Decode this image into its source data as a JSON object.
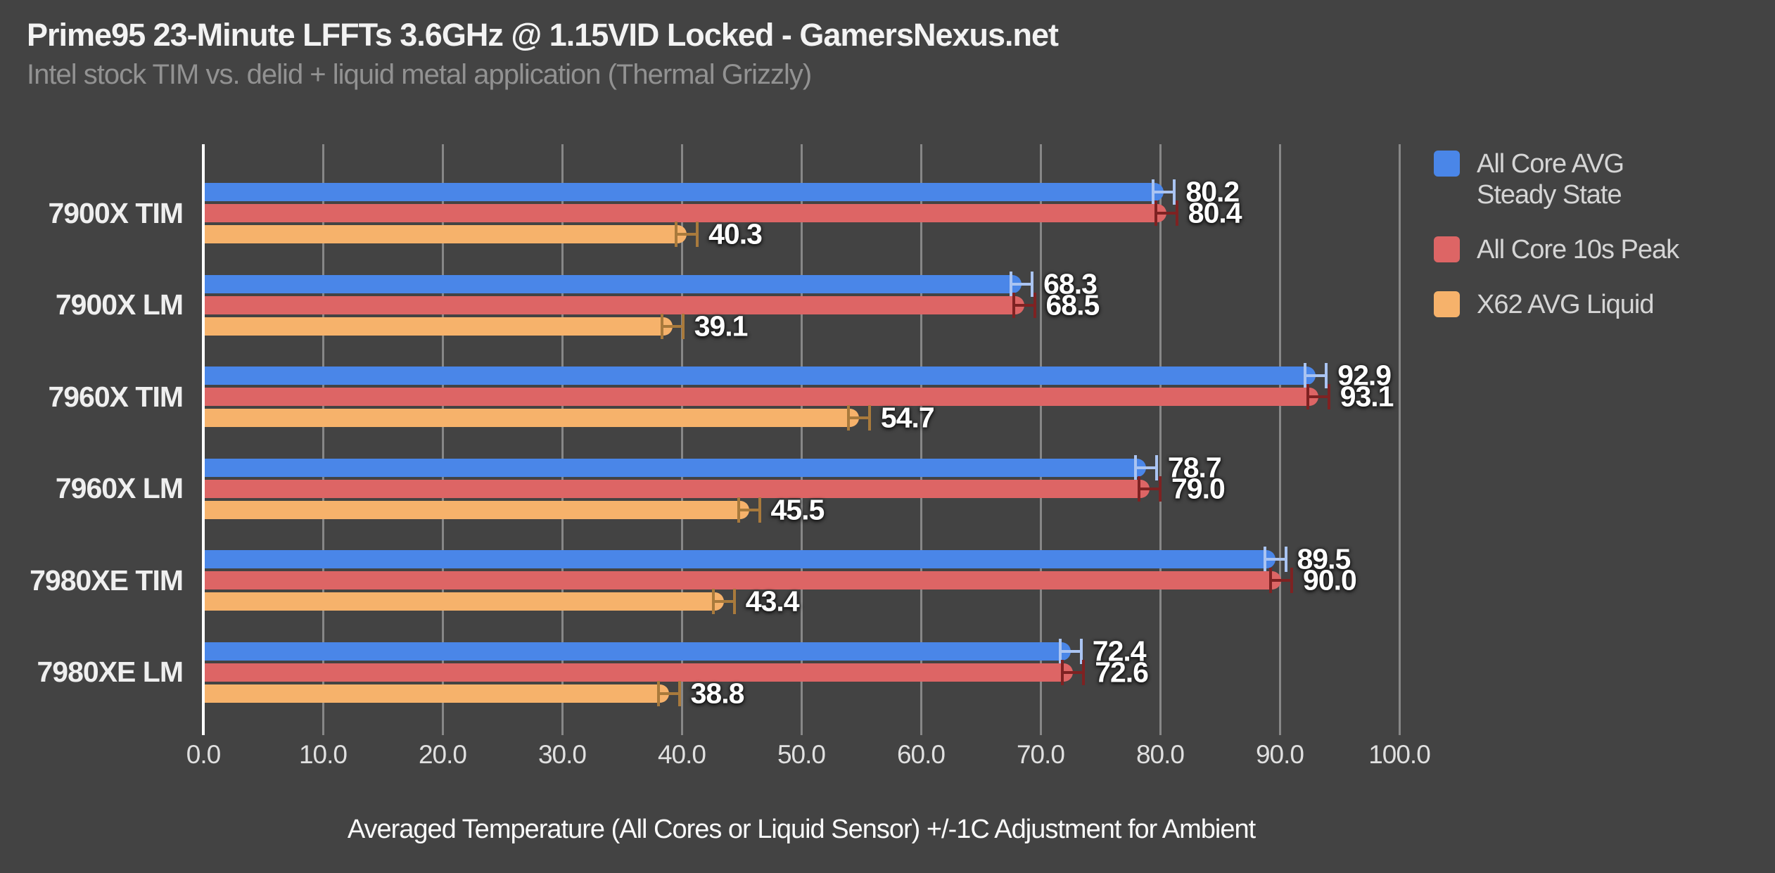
{
  "chart_data": {
    "type": "bar",
    "orientation": "horizontal",
    "title": "Prime95 23-Minute LFFTs 3.6GHz @ 1.15VID Locked - GamersNexus.net",
    "subtitle": "Intel stock TIM vs. delid + liquid metal application (Thermal Grizzly)",
    "categories": [
      "7900X TIM",
      "7900X LM",
      "7960X TIM",
      "7960X LM",
      "7980XE TIM",
      "7980XE LM"
    ],
    "series": [
      {
        "name": "All Core AVG\nSteady State",
        "color": "#4a86e8",
        "error_color": "#aac4f2",
        "values": [
          80.2,
          68.3,
          92.9,
          78.7,
          89.5,
          72.4
        ]
      },
      {
        "name": "All Core 10s Peak",
        "color": "#dd6565",
        "error_color": "#7e2222",
        "values": [
          80.4,
          68.5,
          93.1,
          79.0,
          90.0,
          72.6
        ]
      },
      {
        "name": "X62 AVG Liquid",
        "color": "#f6b26b",
        "error_color": "#a97a3c",
        "values": [
          40.3,
          39.1,
          54.7,
          45.5,
          43.4,
          38.8
        ]
      }
    ],
    "error_bar_plus_minus": 1.0,
    "value_label_format": "one-decimal",
    "xlabel": "Averaged Temperature (All Cores or Liquid Sensor) +/-1C Adjustment for Ambient",
    "xlim": [
      0,
      101.3
    ],
    "xticks": [
      0,
      10,
      20,
      30,
      40,
      50,
      60,
      70,
      80,
      90,
      100
    ],
    "xtick_format": "one-decimal",
    "grid": "vertical",
    "legend_position": "right",
    "background_color": "#434343",
    "gridline_color": "#878787",
    "axis_line_color": "#ffffff"
  }
}
